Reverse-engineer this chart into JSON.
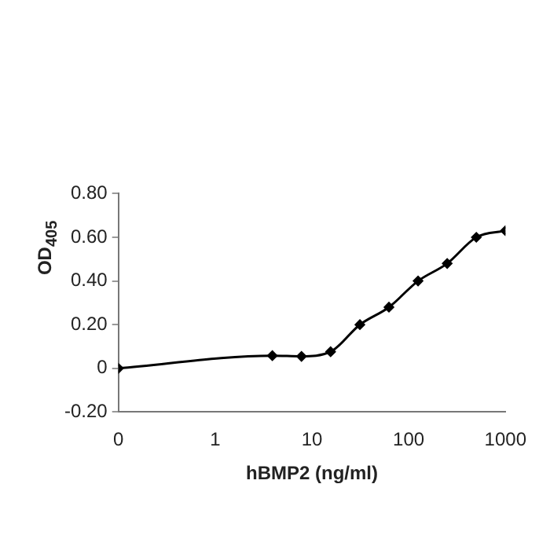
{
  "chart_data": {
    "type": "line",
    "xlabel": "hBMP2 (ng/ml)",
    "ylabel": "OD$_{405}$",
    "series": [
      {
        "color": "#000000",
        "x": [
          0.1,
          3.9,
          7.8,
          15.6,
          31.3,
          62.5,
          125,
          250,
          500,
          1000
        ],
        "values": [
          0,
          0.058,
          0.055,
          0.076,
          0.2,
          0.28,
          0.4,
          0.48,
          0.6,
          0.63
        ]
      }
    ],
    "log": "x",
    "xlim": [
      0.1,
      1000
    ],
    "xticks": [
      {
        "value": 0.1,
        "label": "0"
      },
      1,
      10,
      100,
      1000
    ],
    "ylim": [
      -0.2,
      0.8
    ],
    "yticks": [
      {
        "value": -0.2,
        "label": "-0.20"
      },
      {
        "value": 0,
        "label": "0"
      },
      {
        "value": 0.2,
        "label": "0.20"
      },
      {
        "value": 0.4,
        "label": "0.40"
      },
      {
        "value": 0.6,
        "label": "0.60"
      },
      {
        "value": 0.8,
        "label": "0.80"
      }
    ],
    "grid": false,
    "legend": false,
    "marker": "diamond",
    "line_style": "solid"
  }
}
